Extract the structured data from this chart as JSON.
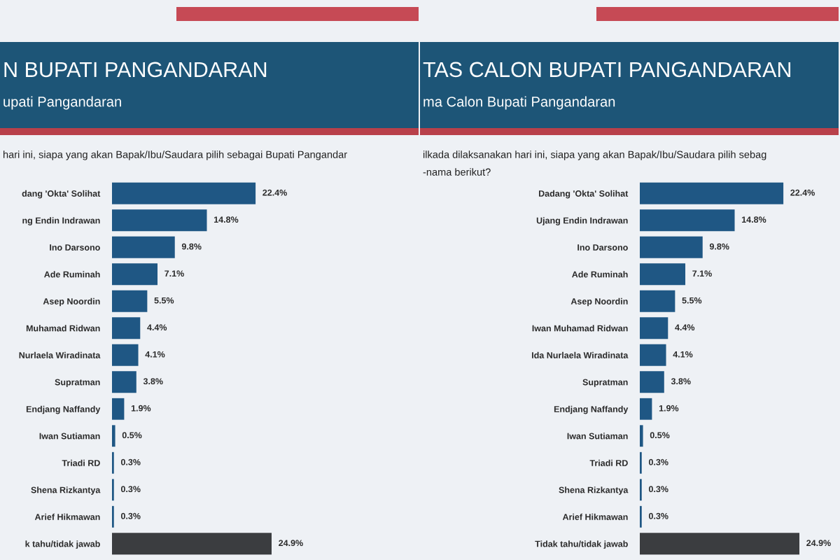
{
  "chart_data": [
    {
      "type": "bar",
      "orientation": "horizontal",
      "title": "N BUPATI PANGANDARAN",
      "subtitle": "upati Pangandaran",
      "annotations": [
        "hari ini, siapa yang akan Bapak/Ibu/Saudara pilih sebagai Bupati Pangandar"
      ],
      "categories": [
        "dang 'Okta' Solihat",
        "ng Endin Indrawan",
        "Ino Darsono",
        "Ade Ruminah",
        "Asep Noordin",
        "Muhamad Ridwan",
        "Nurlaela Wiradinata",
        "Supratman",
        "Endjang Naffandy",
        "Iwan Sutiaman",
        "Triadi RD",
        "Shena Rizkantya",
        "Arief Hikmawan",
        "k tahu/tidak jawab"
      ],
      "values": [
        22.4,
        14.8,
        9.8,
        7.1,
        5.5,
        4.4,
        4.1,
        3.8,
        1.9,
        0.5,
        0.3,
        0.3,
        0.3,
        24.9
      ],
      "colors": [
        "#1f5784",
        "#1f5784",
        "#1f5784",
        "#1f5784",
        "#1f5784",
        "#1f5784",
        "#1f5784",
        "#1f5784",
        "#1f5784",
        "#1f5784",
        "#1f5784",
        "#1f5784",
        "#1f5784",
        "#3b3d40"
      ],
      "value_labels": [
        "22.4%",
        "14.8%",
        "9.8%",
        "7.1%",
        "5.5%",
        "4.4%",
        "4.1%",
        "3.8%",
        "1.9%",
        "0.5%",
        "0.3%",
        "0.3%",
        "0.3%",
        "24.9%"
      ]
    },
    {
      "type": "bar",
      "orientation": "horizontal",
      "title": "TAS CALON BUPATI PANGANDARAN",
      "subtitle": "ma Calon Bupati Pangandaran",
      "annotations": [
        "ilkada dilaksanakan hari ini, siapa yang akan Bapak/Ibu/Saudara pilih sebag",
        "-nama berikut?"
      ],
      "categories": [
        "Dadang 'Okta' Solihat",
        "Ujang Endin Indrawan",
        "Ino Darsono",
        "Ade Ruminah",
        "Asep Noordin",
        "Iwan Muhamad Ridwan",
        "Ida Nurlaela Wiradinata",
        "Supratman",
        "Endjang Naffandy",
        "Iwan Sutiaman",
        "Triadi RD",
        "Shena Rizkantya",
        "Arief Hikmawan",
        "Tidak tahu/tidak jawab"
      ],
      "values": [
        22.4,
        14.8,
        9.8,
        7.1,
        5.5,
        4.4,
        4.1,
        3.8,
        1.9,
        0.5,
        0.3,
        0.3,
        0.3,
        24.9
      ],
      "colors": [
        "#1f5784",
        "#1f5784",
        "#1f5784",
        "#1f5784",
        "#1f5784",
        "#1f5784",
        "#1f5784",
        "#1f5784",
        "#1f5784",
        "#1f5784",
        "#1f5784",
        "#1f5784",
        "#1f5784",
        "#3b3d40"
      ],
      "value_labels": [
        "22.4%",
        "14.8%",
        "9.8%",
        "7.1%",
        "5.5%",
        "4.4%",
        "4.1%",
        "3.8%",
        "1.9%",
        "0.5%",
        "0.3%",
        "0.3%",
        "0.3%",
        "24.9%"
      ]
    }
  ]
}
